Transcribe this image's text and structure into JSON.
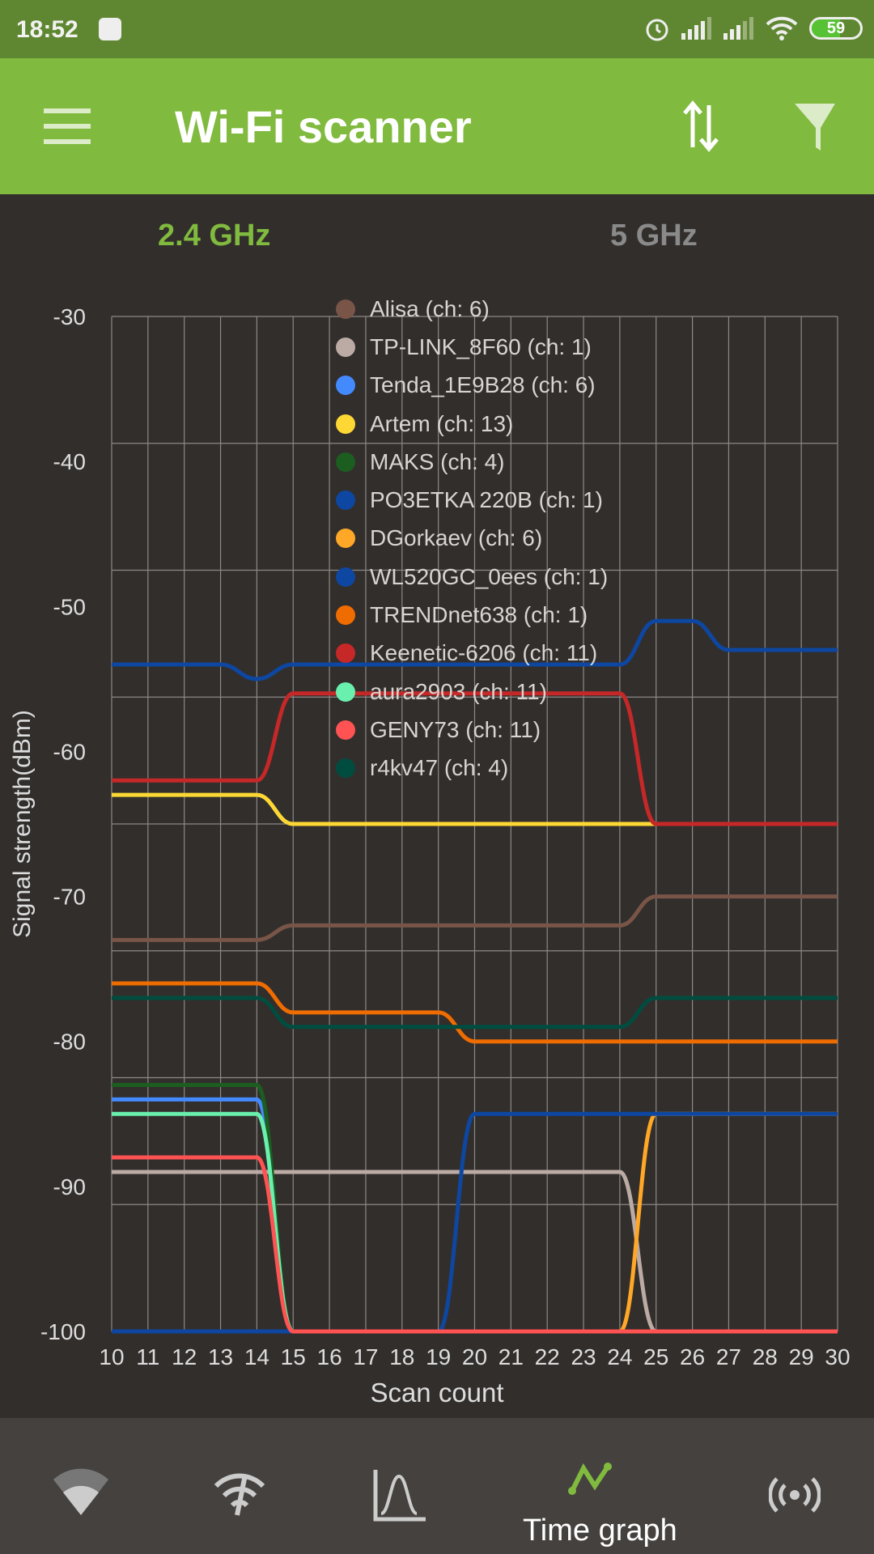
{
  "status_bar": {
    "time": "18:52",
    "battery": "59",
    "battery_percent": 59
  },
  "toolbar": {
    "title": "Wi-Fi scanner"
  },
  "tabs": [
    {
      "label": "2.4 GHz",
      "active": true,
      "color": "#80ba3e"
    },
    {
      "label": "5 GHz",
      "active": false,
      "color": "#8a8a8a"
    }
  ],
  "bottom_nav": {
    "items": [
      {
        "icon": "wifi-signal-icon"
      },
      {
        "icon": "wifi-speed-icon"
      },
      {
        "icon": "channel-graph-icon"
      },
      {
        "icon": "time-graph-icon",
        "label": "Time graph",
        "active": true
      },
      {
        "icon": "broadcast-icon"
      }
    ]
  },
  "chart_data": {
    "type": "line",
    "xlabel": "Scan count",
    "ylabel": "Signal strength(dBm)",
    "xlim": [
      10,
      30
    ],
    "ylim": [
      -100,
      -30
    ],
    "xticks": [
      "10",
      "11",
      "12",
      "13",
      "14",
      "15",
      "16",
      "17",
      "18",
      "19",
      "20",
      "21",
      "22",
      "23",
      "24",
      "25",
      "26",
      "27",
      "28",
      "29",
      "30"
    ],
    "yticks": [
      "-30",
      "-40",
      "-50",
      "-60",
      "-70",
      "-80",
      "-90",
      "-100"
    ],
    "grid": true,
    "legend_position": "top-center",
    "x": [
      10,
      11,
      12,
      13,
      14,
      15,
      16,
      17,
      18,
      19,
      20,
      21,
      22,
      23,
      24,
      25,
      26,
      27,
      28,
      29,
      30
    ],
    "series": [
      {
        "name": "Alisa (ch: 6)",
        "color": "#795548",
        "values": [
          -73,
          -73,
          -73,
          -73,
          -73,
          -72,
          -72,
          -72,
          -72,
          -72,
          -72,
          -72,
          -72,
          -72,
          -72,
          -70,
          -70,
          -70,
          -70,
          -70,
          -70
        ]
      },
      {
        "name": "TP-LINK_8F60 (ch: 1)",
        "color": "#bcaaa4",
        "values": [
          -89,
          -89,
          -89,
          -89,
          -89,
          -89,
          -89,
          -89,
          -89,
          -89,
          -89,
          -89,
          -89,
          -89,
          -89,
          -100,
          -100,
          -100,
          -100,
          -100,
          -100
        ]
      },
      {
        "name": "Tenda_1E9B28 (ch: 6)",
        "color": "#448aff",
        "values": [
          -84,
          -84,
          -84,
          -84,
          -84,
          -100,
          -100,
          -100,
          -100,
          -100,
          -100,
          -100,
          -100,
          -100,
          -100,
          -100,
          -100,
          -100,
          -100,
          -100,
          -100
        ]
      },
      {
        "name": "Artem (ch: 13)",
        "color": "#fdd835",
        "values": [
          -63,
          -63,
          -63,
          -63,
          -63,
          -65,
          -65,
          -65,
          -65,
          -65,
          -65,
          -65,
          -65,
          -65,
          -65,
          -65,
          -65,
          -65,
          -65,
          -65,
          -65
        ]
      },
      {
        "name": "MAKS (ch: 4)",
        "color": "#1b5e20",
        "values": [
          -83,
          -83,
          -83,
          -83,
          -83,
          -100,
          -100,
          -100,
          -100,
          -100,
          -100,
          -100,
          -100,
          -100,
          -100,
          -100,
          -100,
          -100,
          -100,
          -100,
          -100
        ]
      },
      {
        "name": "PO3ETKA 220B (ch: 1)",
        "color": "#0d47a1",
        "values": [
          -54,
          -54,
          -54,
          -54,
          -55,
          -54,
          -54,
          -54,
          -54,
          -54,
          -54,
          -54,
          -54,
          -54,
          -54,
          -51,
          -51,
          -53,
          -53,
          -53,
          -53
        ]
      },
      {
        "name": "DGorkaev (ch: 6)",
        "color": "#ffa726",
        "values": [
          -100,
          -100,
          -100,
          -100,
          -100,
          -100,
          -100,
          -100,
          -100,
          -100,
          -100,
          -100,
          -100,
          -100,
          -100,
          -85,
          -85,
          -85,
          -85,
          -85,
          -85
        ]
      },
      {
        "name": "WL520GC_0ees (ch: 1)",
        "color": "#0d47a1",
        "values": [
          -100,
          -100,
          -100,
          -100,
          -100,
          -100,
          -100,
          -100,
          -100,
          -100,
          -85,
          -85,
          -85,
          -85,
          -85,
          -85,
          -85,
          -85,
          -85,
          -85,
          -85
        ]
      },
      {
        "name": "TRENDnet638 (ch: 1)",
        "color": "#ef6c00",
        "values": [
          -76,
          -76,
          -76,
          -76,
          -76,
          -78,
          -78,
          -78,
          -78,
          -78,
          -80,
          -80,
          -80,
          -80,
          -80,
          -80,
          -80,
          -80,
          -80,
          -80,
          -80
        ]
      },
      {
        "name": "Keenetic-6206 (ch: 11)",
        "color": "#c62828",
        "values": [
          -62,
          -62,
          -62,
          -62,
          -62,
          -56,
          -56,
          -56,
          -56,
          -56,
          -56,
          -56,
          -56,
          -56,
          -56,
          -65,
          -65,
          -65,
          -65,
          -65,
          -65
        ]
      },
      {
        "name": "aura2903 (ch: 11)",
        "color": "#69f0ae",
        "values": [
          -85,
          -85,
          -85,
          -85,
          -85,
          -100,
          -100,
          -100,
          -100,
          -100,
          -100,
          -100,
          -100,
          -100,
          -100,
          -100,
          -100,
          -100,
          -100,
          -100,
          -100
        ]
      },
      {
        "name": "GENY73 (ch: 11)",
        "color": "#ff5252",
        "values": [
          -88,
          -88,
          -88,
          -88,
          -88,
          -100,
          -100,
          -100,
          -100,
          -100,
          -100,
          -100,
          -100,
          -100,
          -100,
          -100,
          -100,
          -100,
          -100,
          -100,
          -100
        ]
      },
      {
        "name": "r4kv47 (ch: 4)",
        "color": "#004d40",
        "values": [
          -77,
          -77,
          -77,
          -77,
          -77,
          -79,
          -79,
          -79,
          -79,
          -79,
          -79,
          -79,
          -79,
          -79,
          -79,
          -77,
          -77,
          -77,
          -77,
          -77,
          -77
        ]
      }
    ]
  }
}
